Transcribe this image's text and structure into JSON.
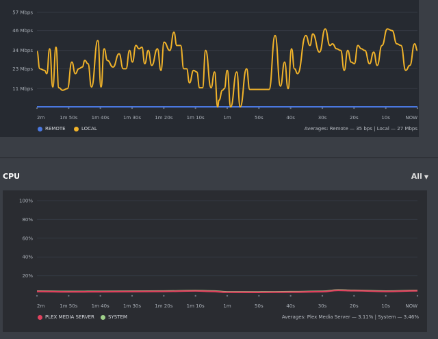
{
  "bandwidth": {
    "legend": [
      {
        "name": "REMOTE",
        "color": "#4a78e0"
      },
      {
        "name": "LOCAL",
        "color": "#f1b32a"
      }
    ],
    "averages": "Averages: Remote — 35 bps | Local — 27 Mbps"
  },
  "cpu": {
    "title": "CPU",
    "filter": {
      "selected": "All",
      "icon": "caret-down-icon"
    },
    "legend": [
      {
        "name": "PLEX MEDIA SERVER",
        "color": "#e0425e"
      },
      {
        "name": "SYSTEM",
        "color": "#9fd08a"
      }
    ],
    "averages": "Averages: Plex Media Server — 3.11% | System — 3.46%"
  },
  "chart_data": [
    {
      "type": "line",
      "xlabel": "",
      "ylabel": "",
      "x_units": "seconds before now",
      "xlim": [
        -120,
        0
      ],
      "ylim": [
        0,
        57
      ],
      "y_ticks": [
        "11 Mbps",
        "23 Mbps",
        "34 Mbps",
        "46 Mbps",
        "57 Mbps"
      ],
      "y_tick_values": [
        11,
        23,
        34,
        46,
        57
      ],
      "x_ticks": [
        "2m",
        "1m 50s",
        "1m 40s",
        "1m 30s",
        "1m 20s",
        "1m 10s",
        "1m",
        "50s",
        "40s",
        "30s",
        "20s",
        "10s",
        "NOW"
      ],
      "grid": true,
      "legend": "bottom-left",
      "series": [
        {
          "name": "REMOTE",
          "color": "#4a78e0",
          "x": [
            -120,
            0
          ],
          "values": [
            0,
            0
          ]
        },
        {
          "name": "LOCAL",
          "color": "#f1b32a",
          "x": [
            -120,
            -119.1,
            -117.6,
            -116.9,
            -116,
            -115,
            -114,
            -113.1,
            -111.9,
            -110.4,
            -109,
            -107.9,
            -106.8,
            -105.7,
            -104.9,
            -103.9,
            -102.8,
            -100.8,
            -99.8,
            -98.8,
            -97.8,
            -96,
            -94.1,
            -92.8,
            -91.9,
            -90.8,
            -89.9,
            -88.8,
            -87.8,
            -86.9,
            -86,
            -84.9,
            -83.8,
            -82,
            -80.9,
            -79.9,
            -78.1,
            -76.8,
            -75.9,
            -74.7,
            -73.7,
            -72.8,
            -71.9,
            -70.6,
            -69.6,
            -68.7,
            -67.8,
            -66.8,
            -65.1,
            -64,
            -63,
            -62.6,
            -61.5,
            -60.9,
            -60,
            -58.9,
            -57,
            -55.9,
            -53.9,
            -52.9,
            -51.1,
            -46.8,
            -44.9,
            -43.2,
            -41.9,
            -40.8,
            -39.7,
            -38.8,
            -37.8,
            -35.2,
            -33.9,
            -33,
            -30.9,
            -29.1,
            -27.6,
            -26.8,
            -25.5,
            -24.2,
            -23.1,
            -22,
            -20.9,
            -19.9,
            -18.8,
            -17.7,
            -16.6,
            -15.1,
            -13.8,
            -12.7,
            -11.2,
            -9.5,
            -8,
            -6.5,
            -5.2,
            -3.7,
            -2.4,
            -0.9,
            0
          ],
          "values": [
            33.5,
            23,
            22,
            20,
            35,
            12,
            36,
            11.5,
            10,
            11,
            27,
            20,
            23,
            24,
            28,
            26,
            12,
            40,
            12,
            35,
            28,
            24,
            32,
            23,
            23,
            34,
            27,
            37,
            35,
            36,
            26,
            34,
            25,
            35,
            22,
            39,
            34,
            45,
            37,
            37,
            23,
            23,
            14.5,
            22,
            21,
            11.5,
            11.5,
            34,
            11.5,
            21,
            0,
            4,
            10,
            11,
            22,
            0,
            21,
            0,
            23,
            10.5,
            10.5,
            10.5,
            43,
            12.5,
            27,
            11,
            35,
            23,
            20,
            43,
            37,
            44,
            33,
            47,
            37,
            38,
            35,
            34,
            22,
            34,
            27,
            26,
            37,
            35,
            34,
            26,
            33,
            25,
            37,
            47,
            46,
            38,
            37,
            22,
            25,
            38,
            34
          ]
        }
      ]
    },
    {
      "type": "line",
      "xlabel": "",
      "ylabel": "",
      "x_units": "seconds before now",
      "xlim": [
        -120,
        0
      ],
      "ylim": [
        0,
        100
      ],
      "y_ticks": [
        "20%",
        "40%",
        "60%",
        "80%",
        "100%"
      ],
      "y_tick_values": [
        20,
        40,
        60,
        80,
        100
      ],
      "x_ticks": [
        "2m",
        "1m 50s",
        "1m 40s",
        "1m 30s",
        "1m 20s",
        "1m 10s",
        "1m",
        "50s",
        "40s",
        "30s",
        "20s",
        "10s",
        "NOW"
      ],
      "grid": true,
      "legend": "bottom-left",
      "series": [
        {
          "name": "SYSTEM",
          "color": "#9fd08a",
          "x": [
            -120,
            -110,
            -100,
            -90,
            -80,
            -70,
            -65,
            -60,
            -50,
            -40,
            -30,
            -25,
            -20,
            -10,
            0
          ],
          "values": [
            3.6,
            3.2,
            3.3,
            3.5,
            3.7,
            4.2,
            3.8,
            2.8,
            2.7,
            2.9,
            3.4,
            4.8,
            4.4,
            3.6,
            4.3
          ]
        },
        {
          "name": "PLEX MEDIA SERVER",
          "color": "#e0425e",
          "x": [
            -120,
            -110,
            -100,
            -90,
            -80,
            -70,
            -65,
            -60,
            -50,
            -40,
            -30,
            -25,
            -20,
            -10,
            0
          ],
          "values": [
            3.2,
            2.8,
            2.9,
            3.1,
            3.3,
            3.8,
            3.3,
            2.4,
            2.3,
            2.5,
            3.0,
            4.4,
            4.0,
            3.2,
            3.9
          ]
        }
      ]
    }
  ]
}
